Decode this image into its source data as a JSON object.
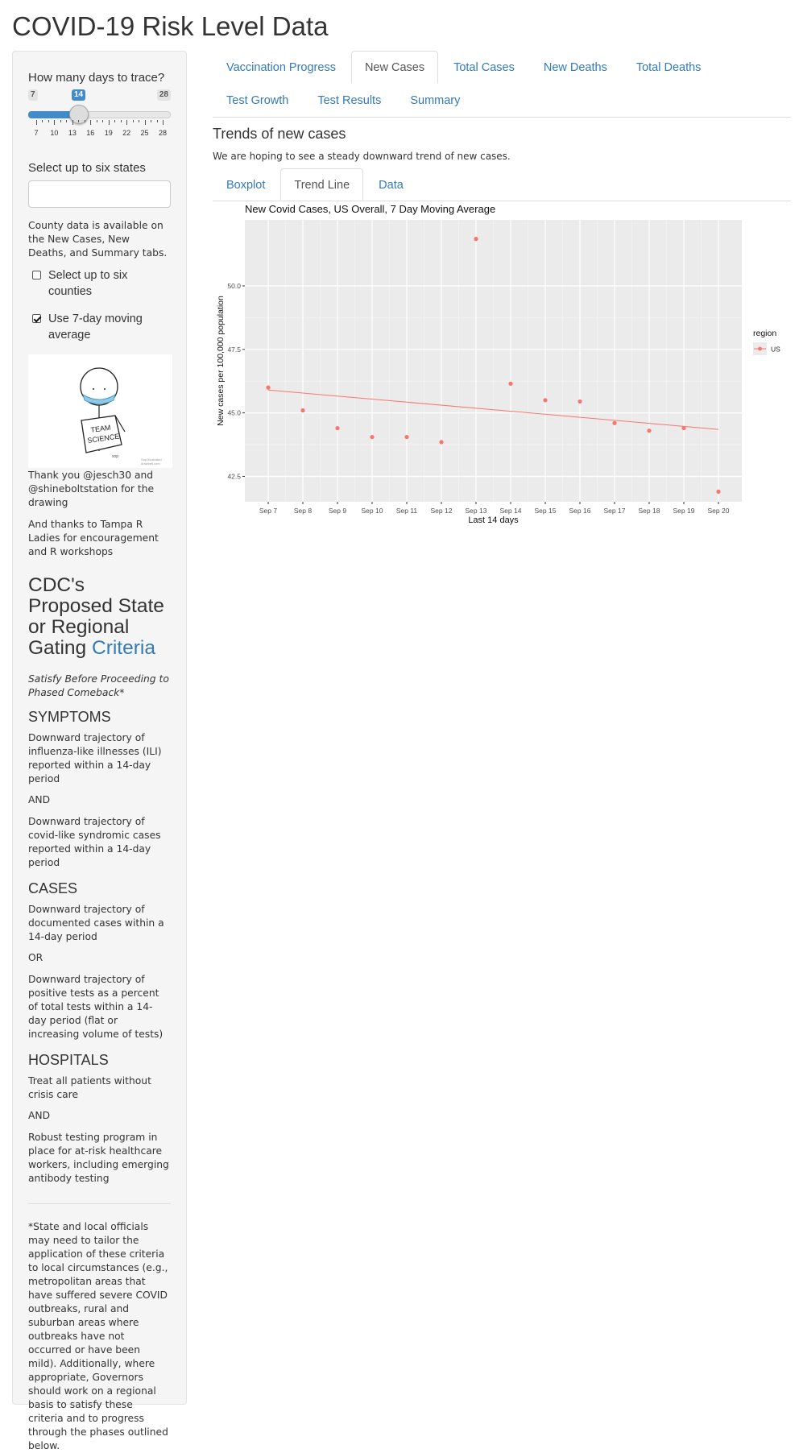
{
  "page": {
    "title": "COVID-19 Risk Level Data"
  },
  "sidebar": {
    "days_label": "How many days to trace?",
    "slider": {
      "min": 7,
      "max": 28,
      "value": 14,
      "tick_labels": [
        "7",
        "10",
        "13",
        "16",
        "19",
        "22",
        "25",
        "28"
      ]
    },
    "states_label": "Select up to six states",
    "states_value": "",
    "county_note": "County data is available on the New Cases, New Deaths, and Summary tabs.",
    "counties_checkbox": {
      "label": "Select up to six counties",
      "checked": false
    },
    "moving_avg_checkbox": {
      "label": "Use 7-day moving average",
      "checked": true
    },
    "drawing": {
      "sign_line1": "TEAM",
      "sign_line2": "SCIENCE",
      "credit_line1": "Sop Illustrated",
      "credit_line2": "drawbell.com"
    },
    "thanks_1": "Thank you @jesch30 and @shineboltstation for the drawing",
    "thanks_2": "And thanks to Tampa R Ladies for encouragement and R workshops",
    "cdc_title_text": "CDC's Proposed State or Regional Gating ",
    "cdc_title_link": "Criteria",
    "cdc_subtitle": "Satisfy Before Proceeding to Phased Comeback*",
    "symptoms_heading": "SYMPTOMS",
    "symptoms_1": "Downward trajectory of influenza-like illnesses (ILI) reported within a 14-day period",
    "and_1": "AND",
    "symptoms_2": "Downward trajectory of covid-like syndromic cases reported within a 14-day period",
    "cases_heading": "CASES",
    "cases_1": "Downward trajectory of documented cases within a 14-day period",
    "or_1": "OR",
    "cases_2": "Downward trajectory of positive tests as a percent of total tests within a 14-day period (flat or increasing volume of tests)",
    "hospitals_heading": "HOSPITALS",
    "hospitals_1": "Treat all patients without crisis care",
    "and_2": "AND",
    "hospitals_2": "Robust testing program in place for at-risk healthcare workers, including emerging antibody testing",
    "footnote": "*State and local officials may need to tailor the application of these criteria to local circumstances (e.g., metropolitan areas that have suffered severe COVID outbreaks, rural and suburban areas where outbreaks have not occurred or have been mild). Additionally, where appropriate, Governors should work on a regional basis to satisfy these criteria and to progress through the phases outlined below."
  },
  "main": {
    "tabs": [
      "Vaccination Progress",
      "New Cases",
      "Total Cases",
      "New Deaths",
      "Total Deaths",
      "Test Growth",
      "Test Results",
      "Summary"
    ],
    "active_tab": "New Cases",
    "section_title": "Trends of new cases",
    "section_subtitle": "We are hoping to see a steady downward trend of new cases.",
    "subtabs": [
      "Boxplot",
      "Trend Line",
      "Data"
    ],
    "active_subtab": "Trend Line"
  },
  "colors": {
    "accent": "#337ab7",
    "series": "#f8766d",
    "panel": "#ebebeb",
    "slider": "#428bca"
  },
  "chart_data": {
    "type": "scatter",
    "title": "New Covid Cases, US Overall, 7 Day Moving Average",
    "xlabel": "Last 14 days",
    "ylabel": "New cases per 100,000 population",
    "categories": [
      "Sep 7",
      "Sep 8",
      "Sep 9",
      "Sep 10",
      "Sep 11",
      "Sep 12",
      "Sep 13",
      "Sep 14",
      "Sep 15",
      "Sep 16",
      "Sep 17",
      "Sep 18",
      "Sep 19",
      "Sep 20"
    ],
    "series": [
      {
        "name": "US",
        "values": [
          46.0,
          45.1,
          44.4,
          44.05,
          44.05,
          43.85,
          51.85,
          46.15,
          45.5,
          45.45,
          44.6,
          44.3,
          44.4,
          41.9
        ]
      }
    ],
    "trend_line": {
      "start": 45.9,
      "end": 44.35
    },
    "yticks": [
      42.5,
      45.0,
      47.5,
      50.0
    ],
    "ylim": [
      41.5,
      52.6
    ],
    "legend_title": "region",
    "legend_position": "right",
    "grid": true
  }
}
